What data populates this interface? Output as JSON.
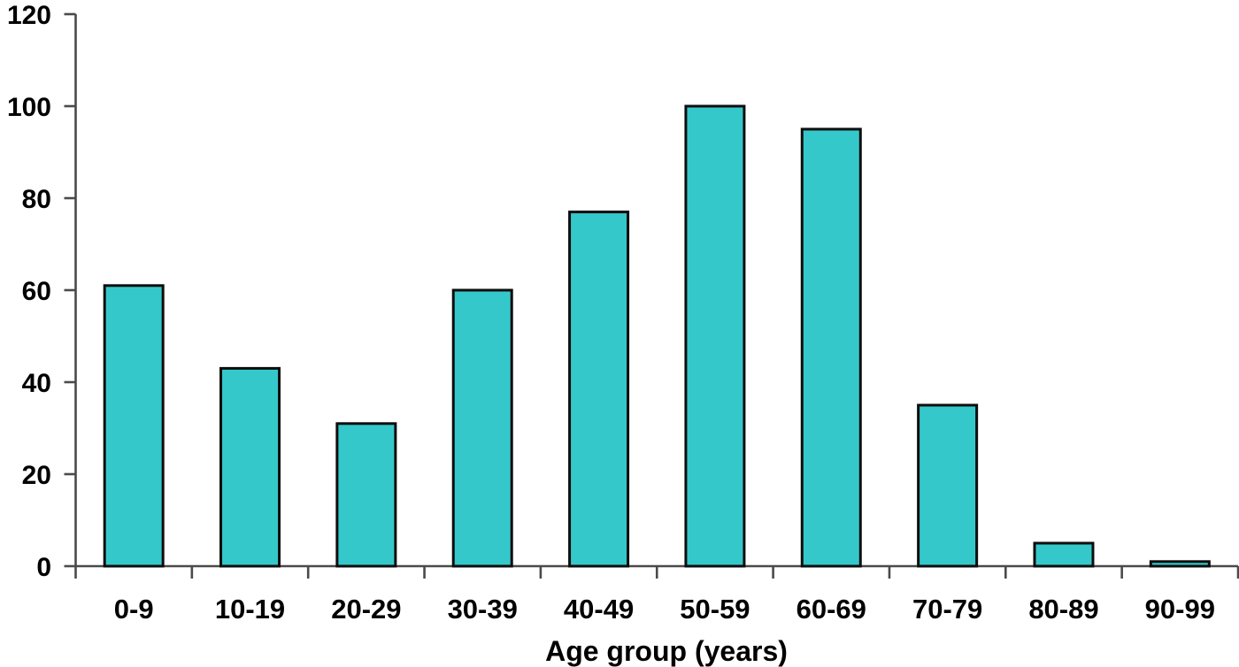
{
  "chart_data": {
    "type": "bar",
    "categories": [
      "0-9",
      "10-19",
      "20-29",
      "30-39",
      "40-49",
      "50-59",
      "60-69",
      "70-79",
      "80-89",
      "90-99"
    ],
    "values": [
      61,
      43,
      31,
      60,
      77,
      100,
      95,
      35,
      5,
      1
    ],
    "title": "",
    "xlabel": "Age group (years)",
    "ylabel": "",
    "ylim": [
      0,
      120
    ],
    "yticks": [
      0,
      20,
      40,
      60,
      80,
      100,
      120
    ],
    "grid": false,
    "legend": "none",
    "colors": {
      "bar_fill": "#35c8cb",
      "bar_border": "#0d0d0d",
      "axis": "#4a4a4a",
      "text": "#000000",
      "background": "#ffffff"
    }
  }
}
